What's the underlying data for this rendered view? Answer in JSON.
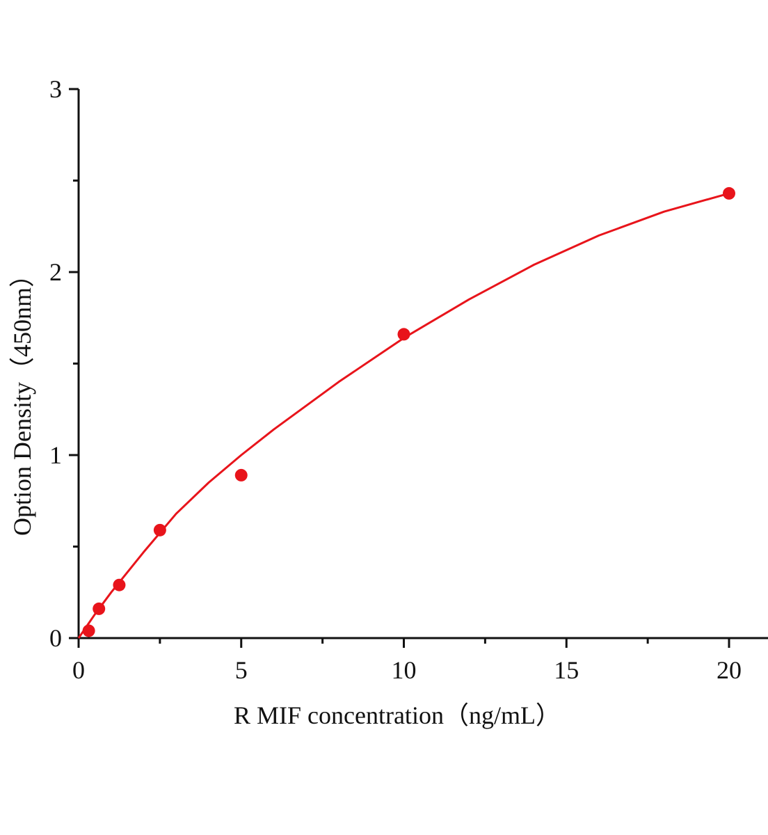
{
  "chart_data": {
    "type": "scatter",
    "title": "",
    "xlabel": "R MIF  concentration（ng/mL）",
    "ylabel": "Option Density（450nm）",
    "xlim": [
      0,
      20.8
    ],
    "ylim": [
      0,
      3
    ],
    "x_ticks": [
      0,
      5,
      10,
      15,
      20
    ],
    "x_minor_ticks": [
      2.5,
      7.5,
      12.5,
      17.5
    ],
    "y_ticks": [
      0,
      1,
      2,
      3
    ],
    "y_minor_ticks": [
      0.5,
      1.5,
      2.5
    ],
    "grid": false,
    "color": "#e8141b",
    "points": {
      "x": [
        0.3125,
        0.625,
        1.25,
        2.5,
        5,
        10,
        20
      ],
      "y": [
        0.04,
        0.16,
        0.29,
        0.59,
        0.89,
        1.66,
        2.43
      ]
    },
    "fit_curve": {
      "x": [
        0,
        0.5,
        1,
        2,
        3,
        4,
        5,
        6,
        8,
        10,
        12,
        14,
        16,
        18,
        20
      ],
      "y": [
        0,
        0.13,
        0.25,
        0.47,
        0.68,
        0.85,
        1.0,
        1.14,
        1.4,
        1.64,
        1.85,
        2.04,
        2.2,
        2.33,
        2.43
      ]
    }
  }
}
